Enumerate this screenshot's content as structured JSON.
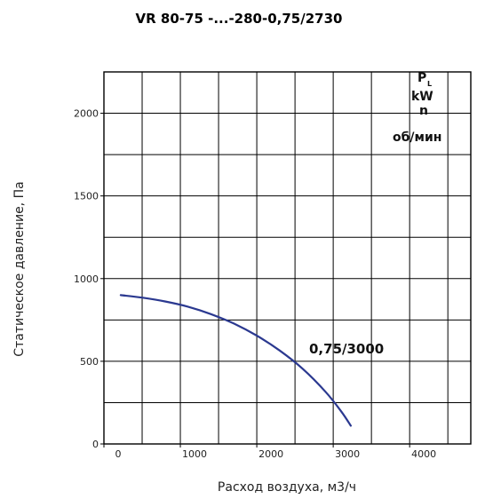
{
  "chart_data": {
    "type": "line",
    "title": "VR 80-75 -...-280-0,75/2730",
    "xlabel": "Расход воздуха, м3/ч",
    "ylabel": "Статическое давление, Па",
    "x_ticks": [
      "0",
      "1000",
      "2000",
      "3000",
      "4000"
    ],
    "y_ticks": [
      "0",
      "500",
      "1000",
      "1500",
      "2000"
    ],
    "xlim": [
      0,
      4800
    ],
    "ylim": [
      0,
      2250
    ],
    "grid": true,
    "legend": {
      "p": "P",
      "p_sub": "L",
      "kw": "kW",
      "n": "n",
      "rpm": "об/мин"
    },
    "series": [
      {
        "name": "0,75/3000",
        "color": "#2b3990",
        "x": [
          220,
          500,
          800,
          1100,
          1400,
          1700,
          2000,
          2300,
          2600,
          2900,
          3100,
          3230
        ],
        "y": [
          900,
          885,
          862,
          830,
          785,
          728,
          655,
          565,
          455,
          315,
          200,
          110
        ]
      }
    ]
  }
}
